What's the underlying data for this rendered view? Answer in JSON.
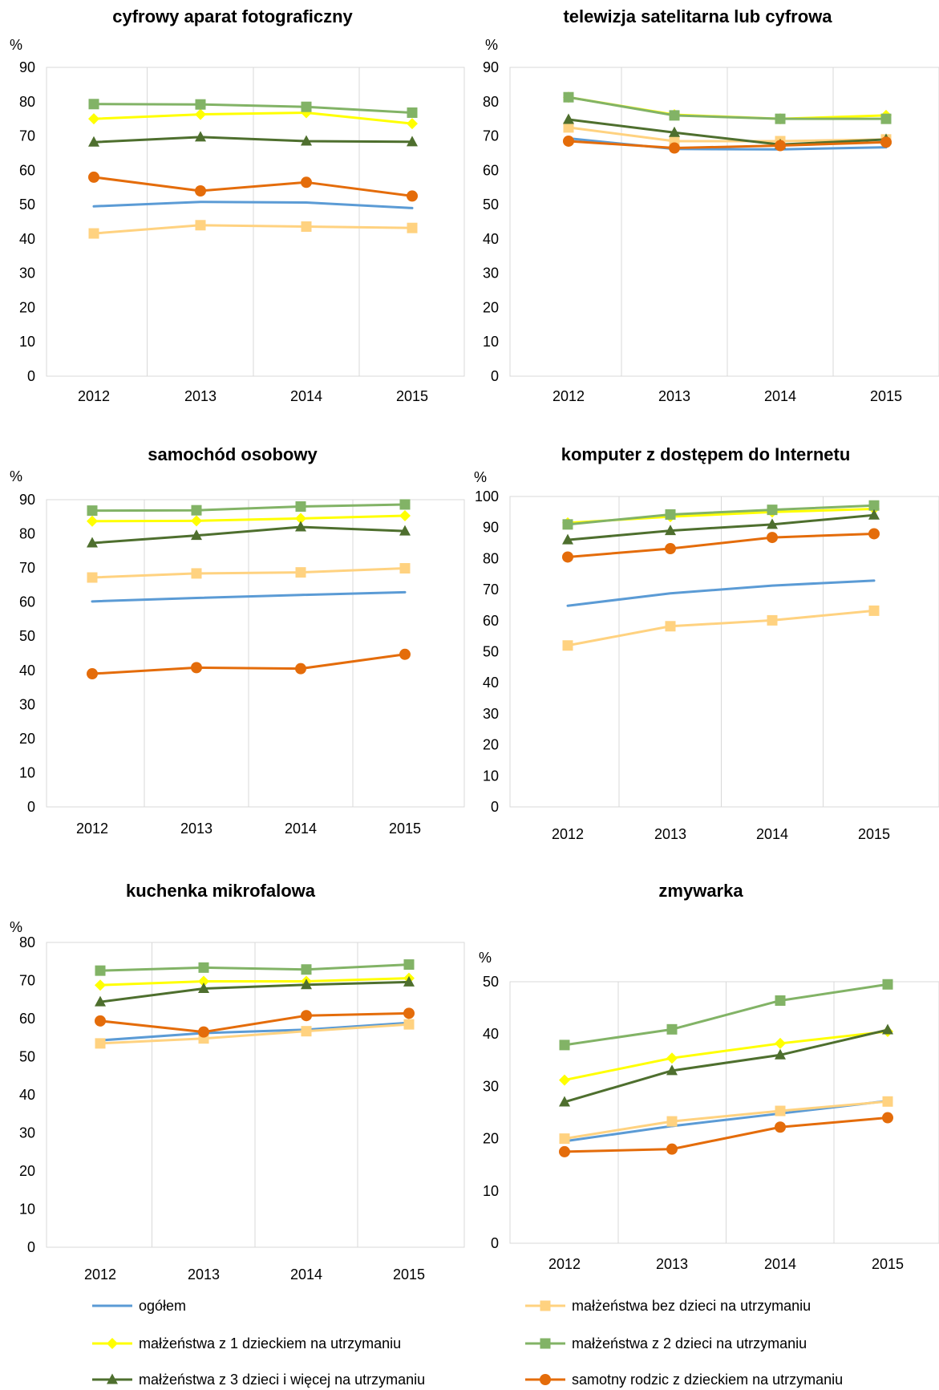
{
  "legend": [
    {
      "key": "ogolem",
      "label": "ogółem"
    },
    {
      "key": "bez",
      "label": "małżeństwa bez dzieci na utrzymaniu"
    },
    {
      "key": "z1",
      "label": "małżeństwa z 1 dzieckiem na utrzymaniu"
    },
    {
      "key": "z2",
      "label": "małżeństwa z 2 dzieci na utrzymaniu"
    },
    {
      "key": "z3",
      "label": "małżeństwa z 3 dzieci i więcej na utrzymaniu"
    },
    {
      "key": "samotny",
      "label": "samotny rodzic z dzieckiem na utrzymaniu"
    }
  ],
  "series_style": {
    "ogolem": {
      "color": "#5b9bd5",
      "marker": "none"
    },
    "bez": {
      "color": "#ffd280",
      "marker": "square"
    },
    "z1": {
      "color": "#ffff00",
      "marker": "diamond"
    },
    "z2": {
      "color": "#82b366",
      "marker": "square"
    },
    "z3": {
      "color": "#4e6f2e",
      "marker": "triangle"
    },
    "samotny": {
      "color": "#e46c0a",
      "marker": "circle"
    }
  },
  "chart_data": [
    {
      "type": "line",
      "title": "cyfrowy aparat fotograficzny",
      "ylabel": "%",
      "ylim": [
        0,
        90
      ],
      "yticks": [
        0,
        10,
        20,
        30,
        40,
        50,
        60,
        70,
        80,
        90
      ],
      "categories": [
        "2012",
        "2013",
        "2014",
        "2015"
      ],
      "series": [
        {
          "key": "ogolem",
          "name": "ogółem",
          "values": [
            49.5,
            50.8,
            50.6,
            49
          ]
        },
        {
          "key": "bez",
          "name": "małżeństwa bez dzieci na utrzymaniu",
          "values": [
            41.6,
            44,
            43.6,
            43.2
          ]
        },
        {
          "key": "z1",
          "name": "małżeństwa z 1 dzieckiem na utrzymaniu",
          "values": [
            75,
            76.3,
            76.8,
            73.6
          ]
        },
        {
          "key": "z2",
          "name": "małżeństwa z 2 dzieci na utrzymaniu",
          "values": [
            79.3,
            79.2,
            78.5,
            76.8
          ]
        },
        {
          "key": "z3",
          "name": "małżeństwa z 3 dzieci i więcej na utrzymaniu",
          "values": [
            68.2,
            69.7,
            68.5,
            68.3
          ]
        },
        {
          "key": "samotny",
          "name": "samotny rodzic z dzieckiem na utrzymaniu",
          "values": [
            58,
            54,
            56.5,
            52.5
          ]
        }
      ]
    },
    {
      "type": "line",
      "title": "telewizja satelitarna lub cyfrowa",
      "ylabel": "%",
      "ylim": [
        0,
        90
      ],
      "yticks": [
        0,
        10,
        20,
        30,
        40,
        50,
        60,
        70,
        80,
        90
      ],
      "categories": [
        "2012",
        "2013",
        "2014",
        "2015"
      ],
      "series": [
        {
          "key": "ogolem",
          "name": "ogółem",
          "values": [
            69.3,
            66.2,
            66.1,
            66.7
          ]
        },
        {
          "key": "bez",
          "name": "małżeństwa bez dzieci na utrzymaniu",
          "values": [
            72.5,
            68.5,
            68.5,
            69
          ]
        },
        {
          "key": "z1",
          "name": "małżeństwa z 1 dzieckiem na utrzymaniu",
          "values": [
            81.3,
            76.2,
            75,
            76
          ]
        },
        {
          "key": "z2",
          "name": "małżeństwa z 2 dzieci na utrzymaniu",
          "values": [
            81.3,
            76,
            75,
            75
          ]
        },
        {
          "key": "z3",
          "name": "małżeństwa z 3 dzieci i więcej na utrzymaniu",
          "values": [
            74.8,
            71,
            67.5,
            69
          ]
        },
        {
          "key": "samotny",
          "name": "samotny rodzic z dzieckiem na utrzymaniu",
          "values": [
            68.5,
            66.5,
            67.2,
            68.2
          ]
        }
      ]
    },
    {
      "type": "line",
      "title": "samochód osobowy",
      "ylabel": "%",
      "ylim": [
        0,
        90
      ],
      "yticks": [
        0,
        10,
        20,
        30,
        40,
        50,
        60,
        70,
        80,
        90
      ],
      "categories": [
        "2012",
        "2013",
        "2014",
        "2015"
      ],
      "series": [
        {
          "key": "ogolem",
          "name": "ogółem",
          "values": [
            60.2,
            61.2,
            62.1,
            62.9
          ]
        },
        {
          "key": "bez",
          "name": "małżeństwa bez dzieci na utrzymaniu",
          "values": [
            67.2,
            68.4,
            68.7,
            69.9
          ]
        },
        {
          "key": "z1",
          "name": "małżeństwa z 1 dzieckiem na utrzymaniu",
          "values": [
            83.7,
            83.8,
            84.5,
            85.3
          ]
        },
        {
          "key": "z2",
          "name": "małżeństwa z 2 dzieci na utrzymaniu",
          "values": [
            86.8,
            86.9,
            88,
            88.6
          ]
        },
        {
          "key": "z3",
          "name": "małżeństwa z 3 dzieci i więcej na utrzymaniu",
          "values": [
            77.3,
            79.5,
            82,
            80.8
          ]
        },
        {
          "key": "samotny",
          "name": "samotny rodzic z dzieckiem na utrzymaniu",
          "values": [
            39,
            40.8,
            40.5,
            44.7
          ]
        }
      ]
    },
    {
      "type": "line",
      "title": "komputer z dostępem do Internetu",
      "ylabel": "%",
      "ylim": [
        0,
        100
      ],
      "yticks": [
        0,
        10,
        20,
        30,
        40,
        50,
        60,
        70,
        80,
        90,
        100
      ],
      "categories": [
        "2012",
        "2013",
        "2014",
        "2015"
      ],
      "series": [
        {
          "key": "ogolem",
          "name": "ogółem",
          "values": [
            64.8,
            68.8,
            71.3,
            72.9
          ]
        },
        {
          "key": "bez",
          "name": "małżeństwa bez dzieci na utrzymaniu",
          "values": [
            52,
            58.2,
            60.1,
            63.2
          ]
        },
        {
          "key": "z1",
          "name": "małżeństwa z 1 dzieckiem na utrzymaniu",
          "values": [
            91.5,
            93.5,
            95,
            96
          ]
        },
        {
          "key": "z2",
          "name": "małżeństwa z 2 dzieci na utrzymaniu",
          "values": [
            91,
            94.2,
            95.7,
            97.1
          ]
        },
        {
          "key": "z3",
          "name": "małżeństwa z 3 dzieci i więcej na utrzymaniu",
          "values": [
            86,
            89,
            91,
            94
          ]
        },
        {
          "key": "samotny",
          "name": "samotny rodzic z dzieckiem na utrzymaniu",
          "values": [
            80.5,
            83.2,
            86.8,
            88
          ]
        }
      ]
    },
    {
      "type": "line",
      "title": "kuchenka mikrofalowa",
      "ylabel": "%",
      "ylim": [
        0,
        80
      ],
      "yticks": [
        0,
        10,
        20,
        30,
        40,
        50,
        60,
        70,
        80
      ],
      "categories": [
        "2012",
        "2013",
        "2014",
        "2015"
      ],
      "series": [
        {
          "key": "ogolem",
          "name": "ogółem",
          "values": [
            54.3,
            56.2,
            57.1,
            58.9
          ]
        },
        {
          "key": "bez",
          "name": "małżeństwa bez dzieci na utrzymaniu",
          "values": [
            53.5,
            54.8,
            56.7,
            58.5
          ]
        },
        {
          "key": "z1",
          "name": "małżeństwa z 1 dzieckiem na utrzymaniu",
          "values": [
            68.8,
            69.8,
            69.8,
            70.6
          ]
        },
        {
          "key": "z2",
          "name": "małżeństwa z 2 dzieci na utrzymaniu",
          "values": [
            72.6,
            73.4,
            72.9,
            74.2
          ]
        },
        {
          "key": "z3",
          "name": "małżeństwa z 3 dzieci i więcej na utrzymaniu",
          "values": [
            64.4,
            67.9,
            68.9,
            69.6
          ]
        },
        {
          "key": "samotny",
          "name": "samotny rodzic z dzieckiem na utrzymaniu",
          "values": [
            59.4,
            56.5,
            60.8,
            61.4
          ]
        }
      ]
    },
    {
      "type": "line",
      "title": "zmywarka",
      "ylabel": "%",
      "ylim": [
        0,
        50
      ],
      "yticks": [
        0,
        10,
        20,
        30,
        40,
        50
      ],
      "categories": [
        "2012",
        "2013",
        "2014",
        "2015"
      ],
      "series": [
        {
          "key": "ogolem",
          "name": "ogółem",
          "values": [
            19.5,
            22.4,
            24.8,
            27.2
          ]
        },
        {
          "key": "bez",
          "name": "małżeństwa bez dzieci na utrzymaniu",
          "values": [
            20,
            23.3,
            25.3,
            27.1
          ]
        },
        {
          "key": "z1",
          "name": "małżeństwa z 1 dzieckiem na utrzymaniu",
          "values": [
            31.2,
            35.4,
            38.2,
            40.5
          ]
        },
        {
          "key": "z2",
          "name": "małżeństwa z 2 dzieci na utrzymaniu",
          "values": [
            37.9,
            40.9,
            46.4,
            49.5
          ]
        },
        {
          "key": "z3",
          "name": "małżeństwa z 3 dzieci i więcej na utrzymaniu",
          "values": [
            27,
            33,
            36,
            40.8
          ]
        },
        {
          "key": "samotny",
          "name": "samotny rodzic z dzieckiem na utrzymaniu",
          "values": [
            17.5,
            18,
            22.2,
            24
          ]
        }
      ]
    }
  ]
}
